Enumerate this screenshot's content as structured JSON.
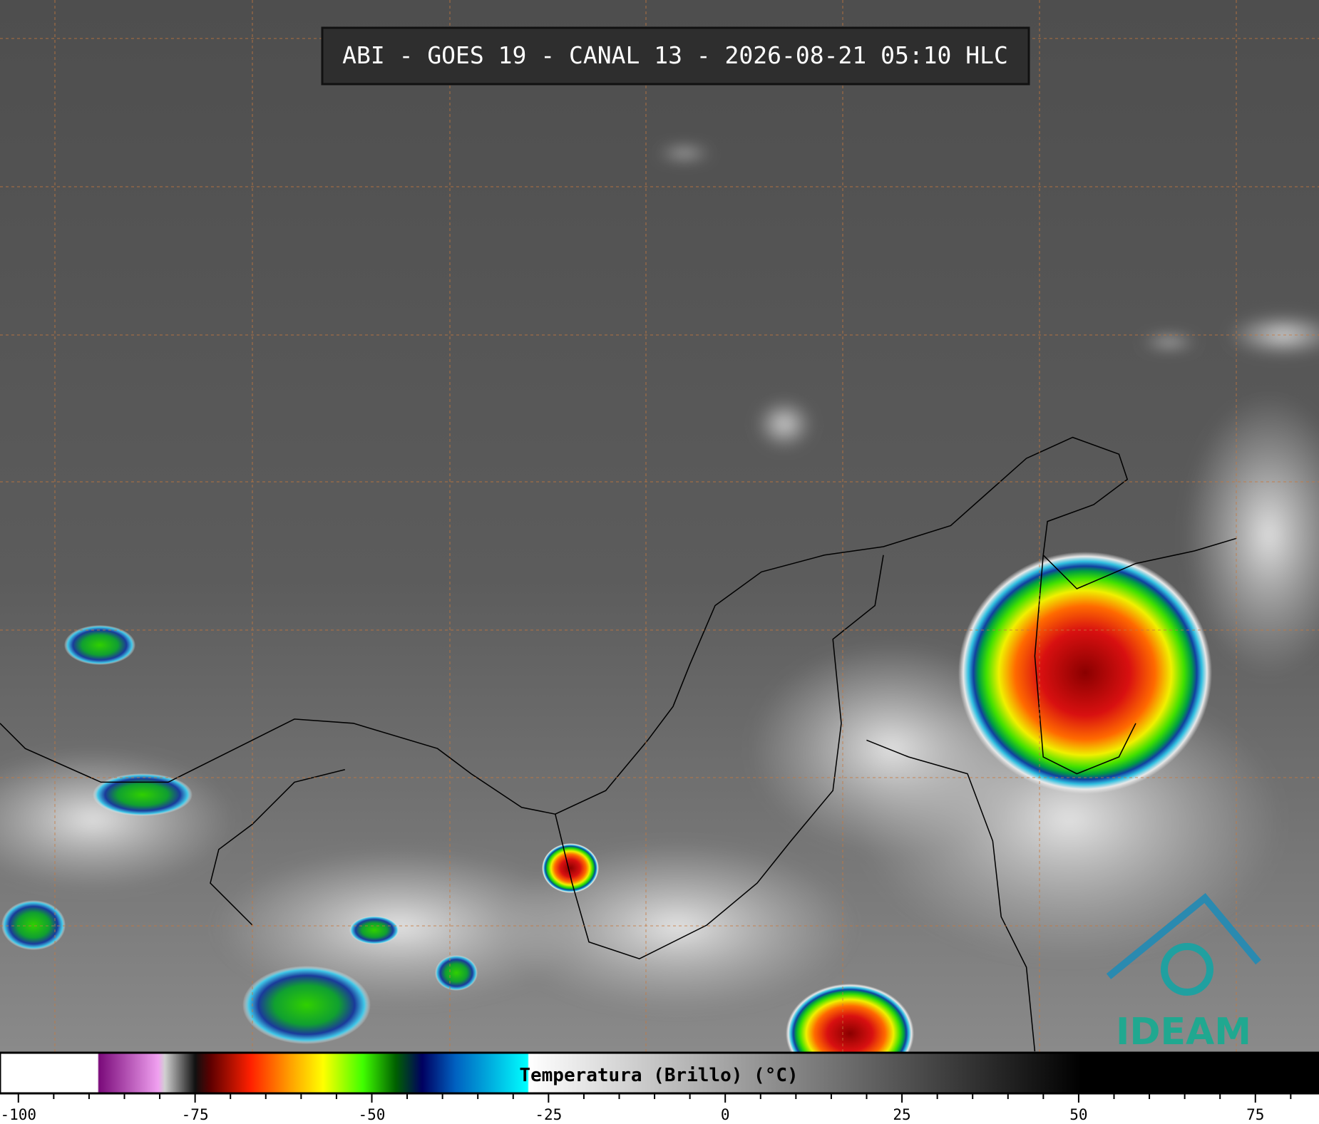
{
  "title": "ABI - GOES 19 - CANAL 13 - 2026-08-21 05:10 HLC",
  "logo": "IDEAM",
  "colorbar": {
    "label": "Temperatura (Brillo) (°C)",
    "xlim": [
      -102.6,
      84
    ],
    "xticks": [
      -100,
      -75,
      -50,
      -25,
      0,
      25,
      50,
      75
    ],
    "minor_ticks": [
      -95,
      -90,
      -85,
      -80,
      -70,
      -65,
      -60,
      -55,
      -45,
      -40,
      -35,
      -30,
      -20,
      -15,
      -10,
      -5,
      5,
      10,
      15,
      20,
      30,
      35,
      40,
      45,
      55,
      60,
      65,
      70,
      80
    ]
  }
}
